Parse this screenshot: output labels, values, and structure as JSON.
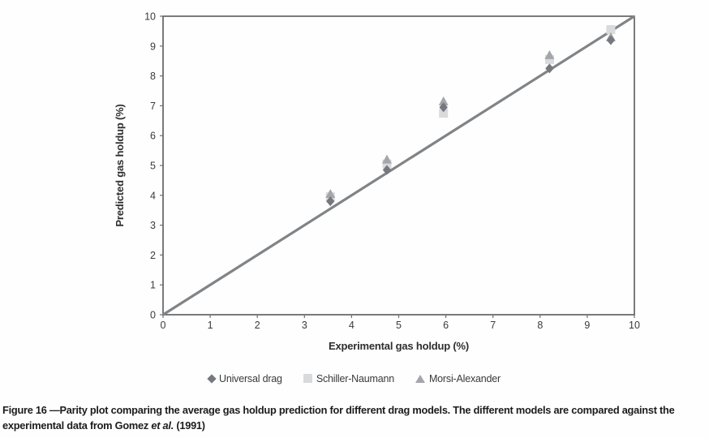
{
  "chart_data": {
    "type": "scatter",
    "title": "",
    "xlabel": "Experimental gas holdup (%)",
    "ylabel": "Predicted gas holdup (%)",
    "xlim": [
      0,
      10
    ],
    "ylim": [
      0,
      10
    ],
    "xticks": [
      0,
      1,
      2,
      3,
      4,
      5,
      6,
      7,
      8,
      9,
      10
    ],
    "yticks": [
      0,
      1,
      2,
      3,
      4,
      5,
      6,
      7,
      8,
      9,
      10
    ],
    "grid": false,
    "legend_position": "bottom",
    "parity_line": {
      "from": [
        0,
        0
      ],
      "to": [
        10,
        10
      ],
      "color": "#818487",
      "width": 3.2
    },
    "x": [
      3.55,
      4.75,
      5.95,
      8.2,
      9.5
    ],
    "series": [
      {
        "name": "Universal drag",
        "marker": "diamond",
        "color": "#75787f",
        "values": [
          3.8,
          4.85,
          6.95,
          8.25,
          9.2
        ]
      },
      {
        "name": "Schiller-Naumann",
        "marker": "square",
        "color": "#d9dadc",
        "values": [
          3.95,
          5.05,
          6.75,
          8.55,
          9.55
        ]
      },
      {
        "name": "Morsi-Alexander",
        "marker": "triangle",
        "color": "#a3a6ab",
        "values": [
          4.05,
          5.2,
          7.15,
          8.7,
          9.3
        ]
      }
    ],
    "frame_color": "#595959",
    "tick_color": "#6e6e6e",
    "tick_text_color": "#3a3a3a",
    "axis_title_color": "#2e2e2e"
  },
  "caption": {
    "line1": "Figure 16 —Parity plot comparing the average gas holdup prediction for different drag models. The different models are compared against the",
    "line2_before": "experimental data from Gomez ",
    "etal": "et al.",
    "line2_after": " (1991)"
  }
}
